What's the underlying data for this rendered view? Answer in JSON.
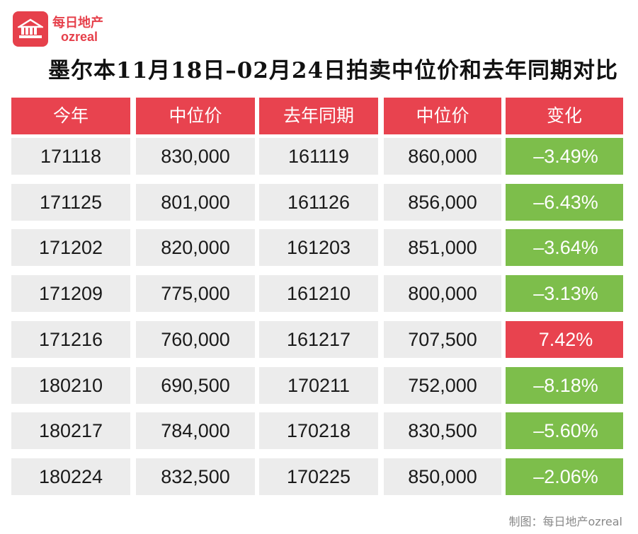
{
  "logo": {
    "cn": "每日地产",
    "en": "ozreal",
    "box_text": "每日地产"
  },
  "title": "墨尔本11月18日–02月24日拍卖中位价和去年同期对比",
  "headers": [
    "今年",
    "中位价",
    "去年同期",
    "中位价",
    "变化"
  ],
  "rows": [
    {
      "date": "171118",
      "median": "830,000",
      "prev_date": "161119",
      "prev_median": "860,000",
      "change": "–3.49%",
      "direction": "down"
    },
    {
      "date": "171125",
      "median": "801,000",
      "prev_date": "161126",
      "prev_median": "856,000",
      "change": "–6.43%",
      "direction": "down"
    },
    {
      "date": "171202",
      "median": "820,000",
      "prev_date": "161203",
      "prev_median": "851,000",
      "change": "–3.64%",
      "direction": "down"
    },
    {
      "date": "171209",
      "median": "775,000",
      "prev_date": "161210",
      "prev_median": "800,000",
      "change": "–3.13%",
      "direction": "down"
    },
    {
      "date": "171216",
      "median": "760,000",
      "prev_date": "161217",
      "prev_median": "707,500",
      "change": "7.42%",
      "direction": "up"
    },
    {
      "date": "180210",
      "median": "690,500",
      "prev_date": "170211",
      "prev_median": "752,000",
      "change": "–8.18%",
      "direction": "down"
    },
    {
      "date": "180217",
      "median": "784,000",
      "prev_date": "170218",
      "prev_median": "830,500",
      "change": "–5.60%",
      "direction": "down"
    },
    {
      "date": "180224",
      "median": "832,500",
      "prev_date": "170225",
      "prev_median": "850,000",
      "change": "–2.06%",
      "direction": "down"
    }
  ],
  "credit": "制图：每日地产ozreal",
  "colors": {
    "header_red": "#e8434f",
    "decrease_green": "#7dbe4b",
    "increase_red": "#e8434f",
    "cell_gray": "#ececec"
  }
}
